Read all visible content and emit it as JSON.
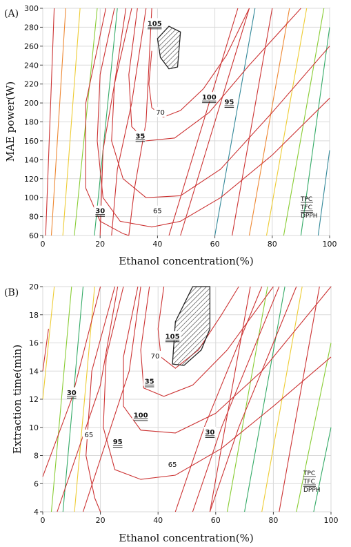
{
  "chart_data": [
    {
      "type": "contour",
      "panel_label": "(A)",
      "xlabel": "Ethanol concentration(%)",
      "ylabel": "MAE power(W)",
      "xlim": [
        0,
        100
      ],
      "ylim": [
        60,
        300
      ],
      "x_ticks": [
        "0",
        "20",
        "40",
        "60",
        "80",
        "100"
      ],
      "y_ticks": [
        "60",
        "80",
        "100",
        "120",
        "140",
        "160",
        "180",
        "200",
        "220",
        "240",
        "260",
        "280",
        "300"
      ],
      "grid": true,
      "legend": [
        "TPC",
        "TFC",
        "DPPH"
      ],
      "legend_position": "bottom-right",
      "optimum_region": [
        [
          40,
          268
        ],
        [
          44,
          281
        ],
        [
          48,
          275
        ],
        [
          47,
          238
        ],
        [
          44,
          236
        ],
        [
          41,
          248
        ]
      ],
      "contour_labels": [
        {
          "text": "105",
          "x": 39,
          "y": 283,
          "style": "double-underline"
        },
        {
          "text": "100",
          "x": 58,
          "y": 205,
          "style": "double-underline"
        },
        {
          "text": "95",
          "x": 65,
          "y": 200,
          "style": "double-underline"
        },
        {
          "text": "70",
          "x": 41,
          "y": 189,
          "style": "plain"
        },
        {
          "text": "35",
          "x": 34,
          "y": 164,
          "style": "double-underline"
        },
        {
          "text": "65",
          "x": 40,
          "y": 85,
          "style": "plain"
        },
        {
          "text": "30",
          "x": 20,
          "y": 85,
          "style": "double-underline"
        }
      ],
      "series": [
        {
          "name": "TPC",
          "color_scale": [
            "#cc3333",
            "#ee8833",
            "#eecc33",
            "#88cc33",
            "#33aa66",
            "#338899"
          ],
          "lines": [
            [
              [
                1,
                60
              ],
              [
                4,
                300
              ]
            ],
            [
              [
                3,
                60
              ],
              [
                8,
                300
              ]
            ],
            [
              [
                7,
                60
              ],
              [
                13,
                300
              ]
            ],
            [
              [
                11,
                60
              ],
              [
                19,
                300
              ]
            ],
            [
              [
                18,
                60
              ],
              [
                26,
                300
              ]
            ],
            [
              [
                60,
                60
              ],
              [
                74,
                300
              ]
            ],
            [
              [
                66,
                60
              ],
              [
                80,
                300
              ]
            ],
            [
              [
                72,
                60
              ],
              [
                86,
                300
              ]
            ],
            [
              [
                78,
                60
              ],
              [
                92,
                300
              ]
            ],
            [
              [
                84,
                60
              ],
              [
                98,
                300
              ]
            ],
            [
              [
                90,
                60
              ],
              [
                100,
                280
              ]
            ],
            [
              [
                96,
                60
              ],
              [
                100,
                150
              ]
            ]
          ]
        },
        {
          "name": "TFC",
          "color_scale": [
            "#cc3333"
          ],
          "lines": [
            [
              [
                20,
                60
              ],
              [
                21,
                150
              ],
              [
                25,
                220
              ],
              [
                31,
                300
              ]
            ],
            [
              [
                24,
                60
              ],
              [
                26,
                130
              ],
              [
                31,
                200
              ],
              [
                36,
                300
              ]
            ],
            [
              [
                30,
                60
              ],
              [
                32,
                110
              ],
              [
                36,
                180
              ],
              [
                38,
                300
              ]
            ],
            [
              [
                44,
                60
              ],
              [
                54,
                160
              ],
              [
                62,
                240
              ],
              [
                68,
                300
              ]
            ],
            [
              [
                48,
                60
              ],
              [
                58,
                160
              ],
              [
                68,
                260
              ],
              [
                72,
                300
              ]
            ]
          ]
        },
        {
          "name": "DPPH",
          "color_scale": [
            "#cc3333"
          ],
          "lines": [
            [
              [
                38,
                255
              ],
              [
                37,
                220
              ],
              [
                38,
                195
              ],
              [
                42,
                185
              ],
              [
                48,
                192
              ],
              [
                56,
                215
              ],
              [
                64,
                250
              ],
              [
                72,
                300
              ]
            ],
            [
              [
                33,
                300
              ],
              [
                30,
                230
              ],
              [
                31,
                175
              ],
              [
                36,
                160
              ],
              [
                46,
                163
              ],
              [
                58,
                190
              ],
              [
                72,
                240
              ],
              [
                90,
                300
              ]
            ],
            [
              [
                29,
                300
              ],
              [
                25,
                220
              ],
              [
                24,
                160
              ],
              [
                28,
                120
              ],
              [
                36,
                100
              ],
              [
                48,
                102
              ],
              [
                62,
                130
              ],
              [
                80,
                190
              ],
              [
                100,
                260
              ]
            ],
            [
              [
                25,
                300
              ],
              [
                20,
                230
              ],
              [
                19,
                160
              ],
              [
                21,
                100
              ],
              [
                27,
                75
              ],
              [
                38,
                69
              ],
              [
                48,
                75
              ],
              [
                62,
                100
              ],
              [
                80,
                145
              ],
              [
                100,
                205
              ]
            ],
            [
              [
                22,
                300
              ],
              [
                15,
                200
              ],
              [
                15,
                110
              ],
              [
                20,
                75
              ],
              [
                28,
                62
              ],
              [
                30,
                60
              ]
            ]
          ]
        }
      ]
    },
    {
      "type": "contour",
      "panel_label": "(B)",
      "xlabel": "Ethanol concentration(%)",
      "ylabel": "Extraction time(min)",
      "xlim": [
        0,
        100
      ],
      "ylim": [
        4,
        20
      ],
      "x_ticks": [
        "0",
        "20",
        "40",
        "60",
        "80",
        "100"
      ],
      "y_ticks": [
        "4",
        "6",
        "8",
        "10",
        "12",
        "14",
        "16",
        "18",
        "20"
      ],
      "grid": true,
      "legend": [
        "TPC",
        "TFC",
        "DPPH"
      ],
      "legend_position": "bottom-right",
      "optimum_region": [
        [
          45,
          14.5
        ],
        [
          46,
          17.5
        ],
        [
          52,
          20
        ],
        [
          58,
          20
        ],
        [
          58,
          17
        ],
        [
          55,
          15.5
        ],
        [
          49,
          14.4
        ]
      ],
      "contour_labels": [
        {
          "text": "105",
          "x": 45,
          "y": 16.4,
          "style": "double-underline"
        },
        {
          "text": "70",
          "x": 39,
          "y": 15,
          "style": "plain"
        },
        {
          "text": "35",
          "x": 37,
          "y": 13.2,
          "style": "double-underline"
        },
        {
          "text": "100",
          "x": 34,
          "y": 10.8,
          "style": "double-underline"
        },
        {
          "text": "30",
          "x": 10,
          "y": 12.4,
          "style": "double-underline"
        },
        {
          "text": "65",
          "x": 16,
          "y": 9.4,
          "style": "plain"
        },
        {
          "text": "95",
          "x": 26,
          "y": 8.9,
          "style": "double-underline"
        },
        {
          "text": "65",
          "x": 45,
          "y": 7.3,
          "style": "plain"
        },
        {
          "text": "30",
          "x": 58,
          "y": 9.6,
          "style": "double-underline"
        }
      ],
      "series": [
        {
          "name": "TPC",
          "color_scale": [
            "#eecc33",
            "#cc3333",
            "#88cc33",
            "#33aa66"
          ],
          "lines": [
            [
              [
                0,
                12
              ],
              [
                4,
                20
              ]
            ],
            [
              [
                0,
                14
              ],
              [
                2,
                17
              ]
            ],
            [
              [
                3,
                4
              ],
              [
                10,
                20
              ]
            ],
            [
              [
                7,
                4
              ],
              [
                14,
                20
              ]
            ],
            [
              [
                11,
                4
              ],
              [
                18,
                20
              ]
            ],
            [
              [
                58,
                4
              ],
              [
                72,
                20
              ]
            ],
            [
              [
                64,
                4
              ],
              [
                78,
                20
              ]
            ],
            [
              [
                70,
                4
              ],
              [
                84,
                20
              ]
            ],
            [
              [
                76,
                4
              ],
              [
                90,
                20
              ]
            ],
            [
              [
                82,
                4
              ],
              [
                96,
                20
              ]
            ],
            [
              [
                88,
                4
              ],
              [
                100,
                16
              ]
            ],
            [
              [
                94,
                4
              ],
              [
                100,
                10
              ]
            ]
          ]
        },
        {
          "name": "TFC",
          "color_scale": [
            "#cc3333"
          ],
          "lines": [
            [
              [
                0,
                6.5
              ],
              [
                10,
                12
              ],
              [
                20,
                20
              ]
            ],
            [
              [
                5,
                4
              ],
              [
                20,
                13
              ],
              [
                26,
                20
              ]
            ],
            [
              [
                14,
                4
              ],
              [
                30,
                14
              ],
              [
                34,
                20
              ]
            ],
            [
              [
                46,
                4
              ],
              [
                56,
                10
              ],
              [
                66,
                15
              ],
              [
                76,
                20
              ]
            ],
            [
              [
                52,
                4
              ],
              [
                62,
                10
              ],
              [
                72,
                15
              ],
              [
                82,
                20
              ]
            ],
            [
              [
                58,
                4
              ],
              [
                68,
                10
              ],
              [
                80,
                16
              ],
              [
                88,
                20
              ]
            ]
          ]
        },
        {
          "name": "DPPH",
          "color_scale": [
            "#cc3333"
          ],
          "lines": [
            [
              [
                42,
                20
              ],
              [
                40,
                17
              ],
              [
                41,
                15
              ],
              [
                46,
                14.2
              ],
              [
                54,
                15.5
              ],
              [
                62,
                18
              ],
              [
                68,
                20
              ]
            ],
            [
              [
                37,
                20
              ],
              [
                34,
                15.5
              ],
              [
                35,
                12.8
              ],
              [
                42,
                12.2
              ],
              [
                52,
                13
              ],
              [
                64,
                15.5
              ],
              [
                80,
                20
              ]
            ],
            [
              [
                33,
                20
              ],
              [
                28,
                15
              ],
              [
                28,
                11.5
              ],
              [
                34,
                9.8
              ],
              [
                46,
                9.6
              ],
              [
                60,
                11
              ],
              [
                76,
                14
              ],
              [
                100,
                20
              ]
            ],
            [
              [
                28,
                20
              ],
              [
                22,
                15
              ],
              [
                21,
                10
              ],
              [
                25,
                7
              ],
              [
                34,
                6.3
              ],
              [
                46,
                6.6
              ],
              [
                62,
                8.5
              ],
              [
                80,
                11.5
              ],
              [
                100,
                15
              ]
            ],
            [
              [
                25,
                20
              ],
              [
                17,
                14
              ],
              [
                15,
                8
              ],
              [
                18,
                5
              ],
              [
                20,
                4
              ]
            ]
          ]
        }
      ]
    }
  ]
}
